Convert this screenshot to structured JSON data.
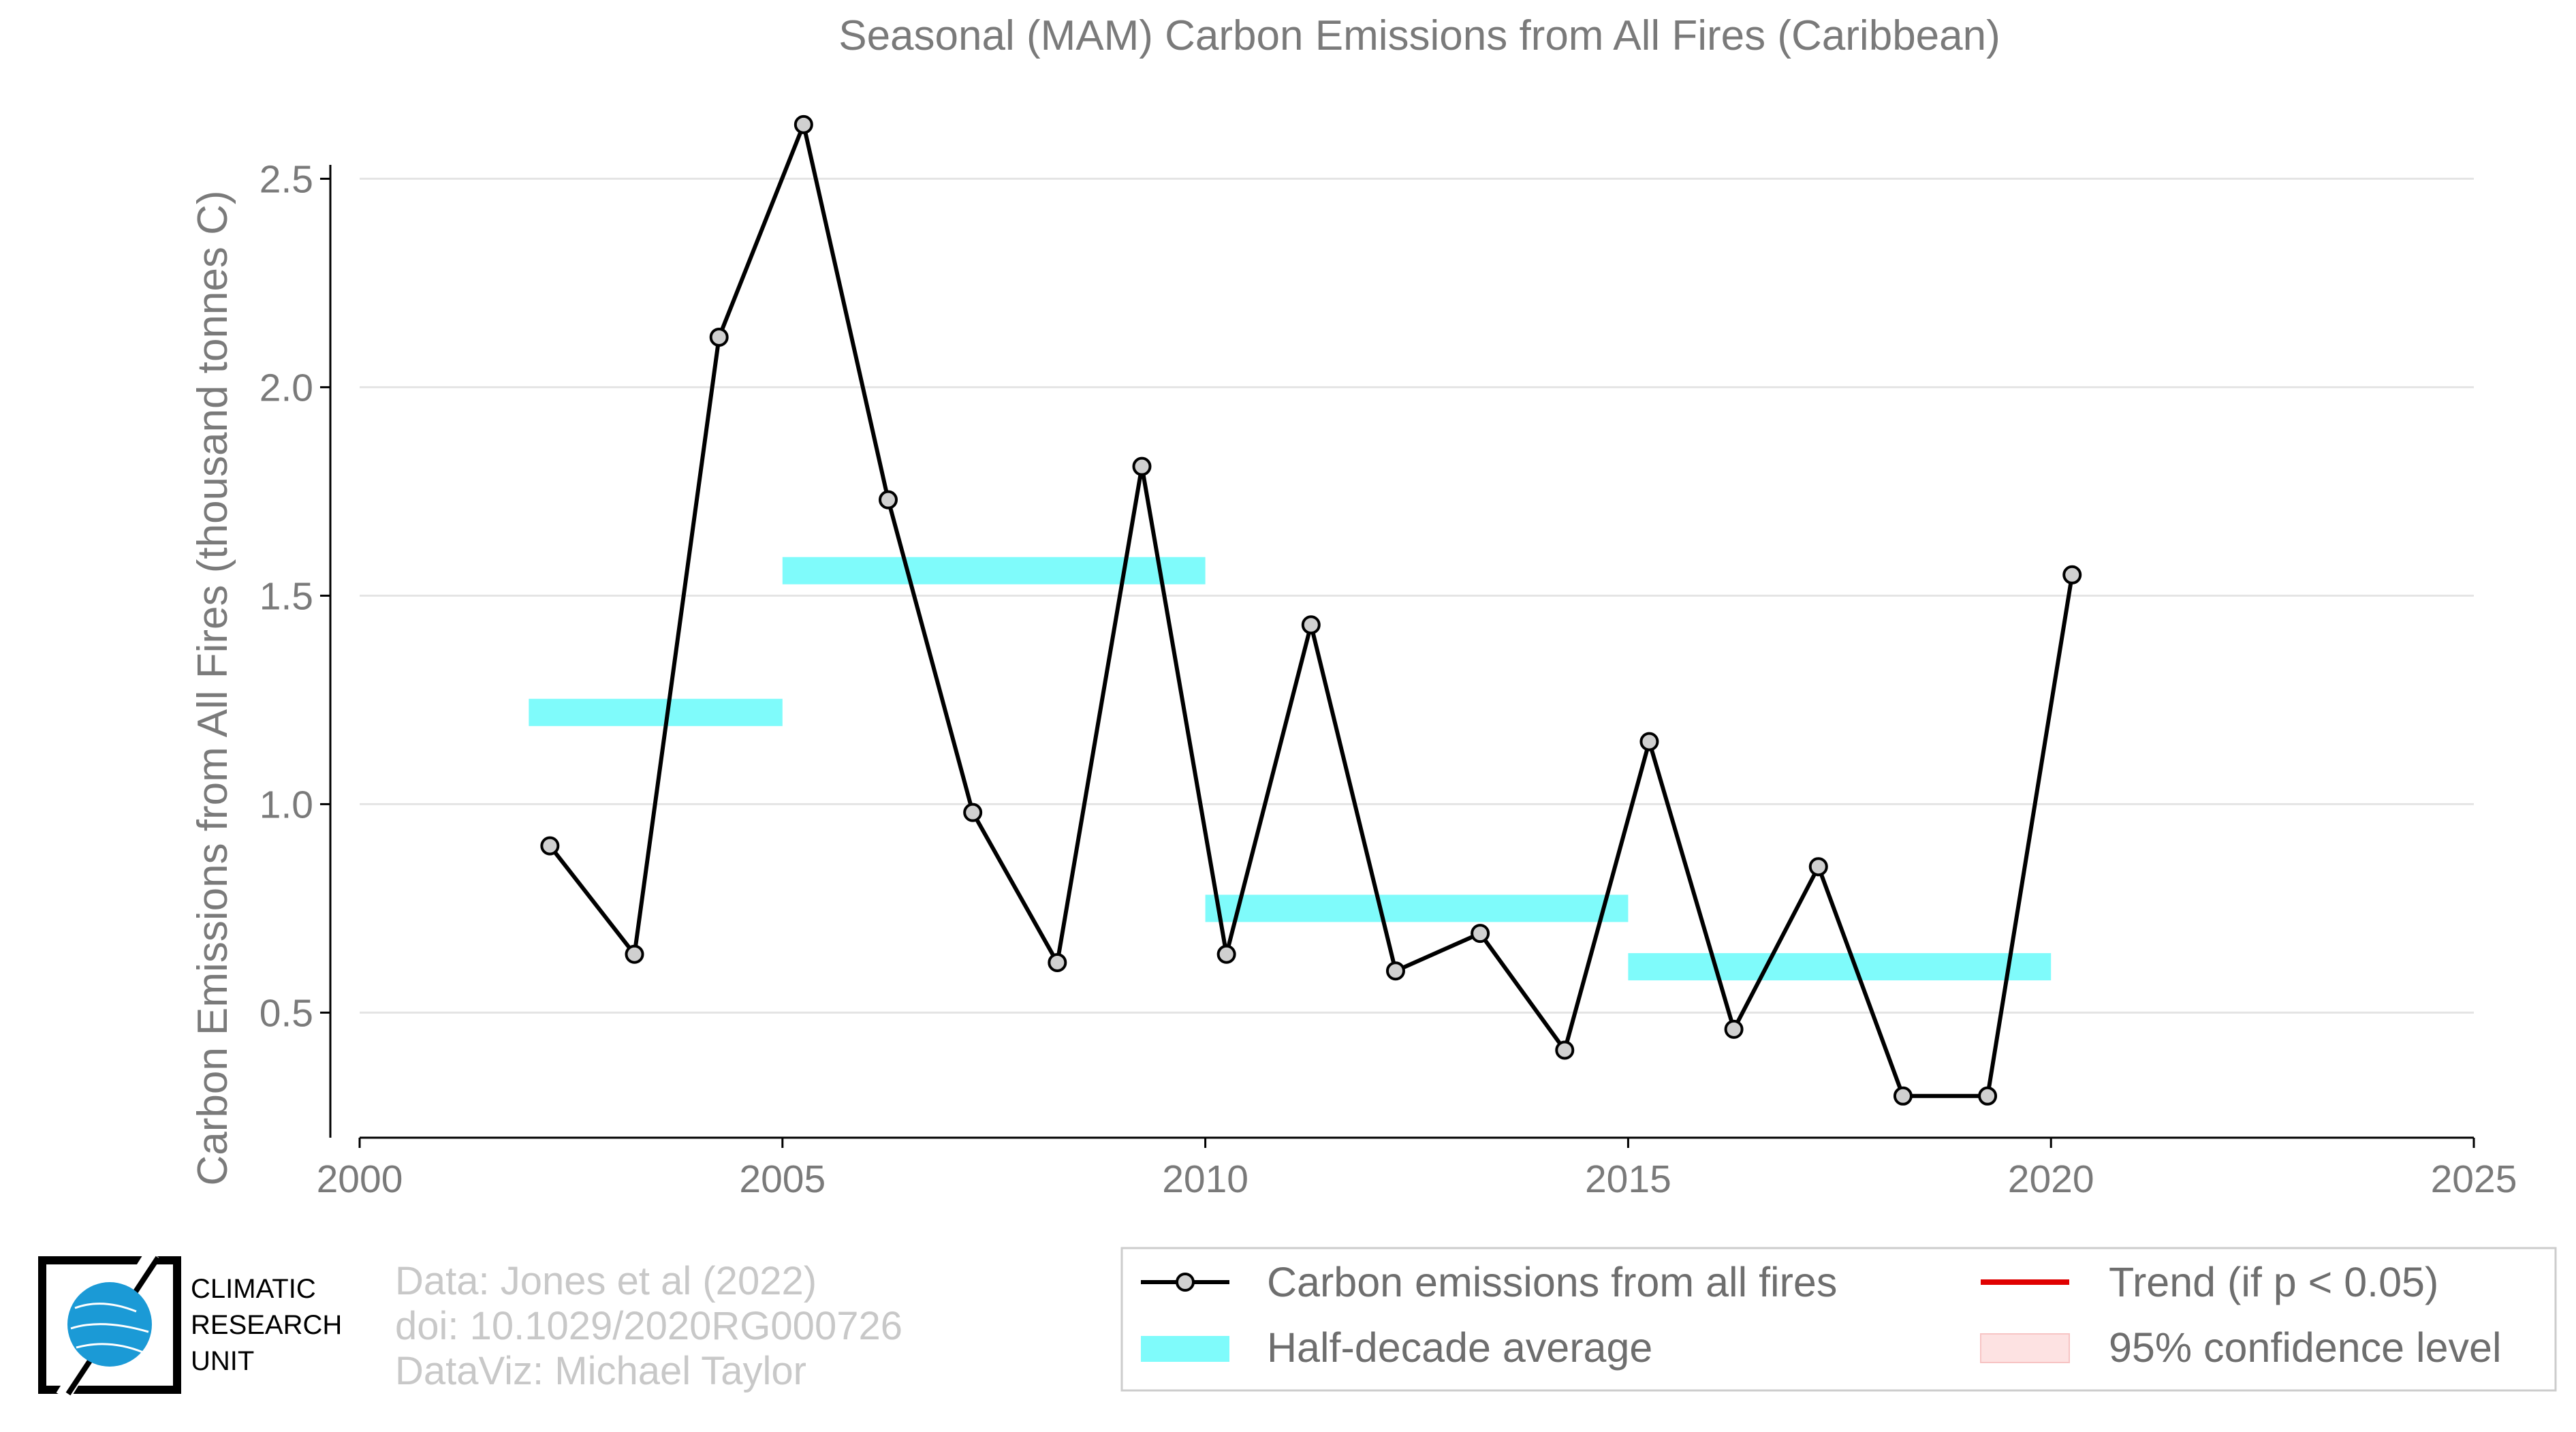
{
  "chart_data": {
    "type": "line",
    "title": "Seasonal (MAM) Carbon Emissions from All Fires (Caribbean)",
    "xlabel": "",
    "ylabel": "Carbon Emissions from All Fires (thousand tonnes C)",
    "xlim": [
      2000,
      2025
    ],
    "ylim": [
      0.2,
      2.7
    ],
    "xticks": [
      "2000",
      "2005",
      "2010",
      "2015",
      "2020",
      "2025"
    ],
    "yticks": [
      "0.5",
      "1.0",
      "1.5",
      "2.0",
      "2.5"
    ],
    "grid": "horizontal",
    "legend_position": "bottom-right",
    "series": [
      {
        "name": "Carbon emissions from all fires",
        "color": "#000000",
        "x": [
          2002.25,
          2003.25,
          2004.25,
          2005.25,
          2006.25,
          2007.25,
          2008.25,
          2009.25,
          2010.25,
          2011.25,
          2012.25,
          2013.25,
          2014.25,
          2015.25,
          2016.25,
          2017.25,
          2018.25,
          2019.25,
          2020.25
        ],
        "y": [
          0.9,
          0.64,
          2.12,
          2.63,
          1.73,
          0.98,
          0.62,
          1.81,
          0.64,
          1.43,
          0.6,
          0.69,
          0.41,
          1.15,
          0.46,
          0.85,
          0.3,
          0.3,
          1.55
        ]
      }
    ],
    "half_decade_average": {
      "name": "Half-decade average",
      "color": "#7ffbfb",
      "segments": [
        {
          "x0": 2002,
          "x1": 2005,
          "y": 1.22
        },
        {
          "x0": 2005,
          "x1": 2010,
          "y": 1.56
        },
        {
          "x0": 2010,
          "x1": 2015,
          "y": 0.75
        },
        {
          "x0": 2015,
          "x1": 2020,
          "y": 0.61
        }
      ]
    },
    "legend": {
      "items": [
        {
          "label": "Carbon emissions from all fires",
          "symbol": "line-marker",
          "color": "#000000"
        },
        {
          "label": "Half-decade average",
          "symbol": "band",
          "color": "#7ffbfb"
        },
        {
          "label": "Trend (if p < 0.05)",
          "symbol": "line",
          "color": "#e00000"
        },
        {
          "label": "95% confidence level",
          "symbol": "patch",
          "color": "#fde2e2"
        }
      ]
    }
  },
  "credits": {
    "line1": "Data: Jones et al (2022)",
    "line2": "doi: 10.1029/2020RG000726",
    "line3": "DataViz: Michael Taylor"
  },
  "logo": {
    "line1": "CLIMATIC",
    "line2": "RESEARCH",
    "line3": "UNIT",
    "color": "#1b9ad6"
  }
}
